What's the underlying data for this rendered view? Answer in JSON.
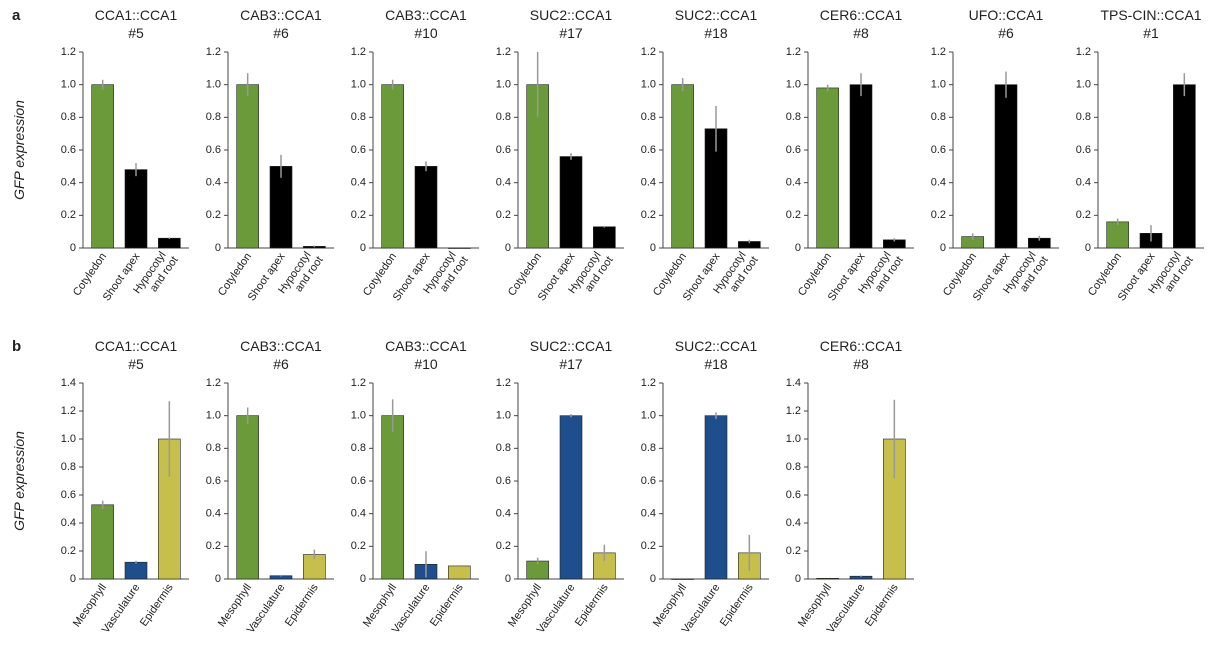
{
  "chart_data": [
    {
      "type": "bar",
      "panel": "a",
      "ylabel": "GFP expression",
      "title": "CCA1::CCA1",
      "subtitle": "#5",
      "categories": [
        "Cotyledon",
        "Shoot apex",
        "Hypocotyl and root"
      ],
      "values": [
        1.0,
        0.48,
        0.06
      ],
      "errors": [
        0.03,
        0.04,
        0.005
      ],
      "colors": [
        "#6b9a3b",
        "#000000",
        "#000000"
      ],
      "ylim": [
        0,
        1.2
      ],
      "yticks": [
        0,
        0.2,
        0.4,
        0.6,
        0.8,
        {
          "value": 1,
          "label": "1.0"
        },
        1.2
      ]
    },
    {
      "type": "bar",
      "title": "CAB3::CCA1",
      "subtitle": "#6",
      "categories": [
        "Cotyledon",
        "Shoot apex",
        "Hypocotyl and root"
      ],
      "values": [
        1.0,
        0.5,
        0.01
      ],
      "errors": [
        0.07,
        0.07,
        0.005
      ],
      "colors": [
        "#6b9a3b",
        "#000000",
        "#000000"
      ],
      "ylim": [
        0,
        1.2
      ],
      "yticks": [
        0,
        0.2,
        0.4,
        0.6,
        0.8,
        {
          "value": 1,
          "label": "1.0"
        },
        1.2
      ]
    },
    {
      "type": "bar",
      "title": "CAB3::CCA1",
      "subtitle": "#10",
      "categories": [
        "Cotyledon",
        "Shoot apex",
        "Hypocotyl and root"
      ],
      "values": [
        1.0,
        0.5,
        0.0
      ],
      "errors": [
        0.03,
        0.03,
        0.0
      ],
      "colors": [
        "#6b9a3b",
        "#000000",
        "#000000"
      ],
      "ylim": [
        0,
        1.2
      ],
      "yticks": [
        0,
        0.2,
        0.4,
        0.6,
        0.8,
        {
          "value": 1,
          "label": "1.0"
        },
        1.2
      ]
    },
    {
      "type": "bar",
      "title": "SUC2::CCA1",
      "subtitle": "#17",
      "categories": [
        "Cotyledon",
        "Shoot apex",
        "Hypocotyl and root"
      ],
      "values": [
        1.0,
        0.56,
        0.13
      ],
      "errors": [
        0.2,
        0.02,
        0.005
      ],
      "colors": [
        "#6b9a3b",
        "#000000",
        "#000000"
      ],
      "ylim": [
        0,
        1.2
      ],
      "yticks": [
        0,
        0.2,
        0.4,
        0.6,
        0.8,
        {
          "value": 1,
          "label": "1.0"
        },
        1.2
      ]
    },
    {
      "type": "bar",
      "title": "SUC2::CCA1",
      "subtitle": "#18",
      "categories": [
        "Cotyledon",
        "Shoot apex",
        "Hypocotyl and root"
      ],
      "values": [
        1.0,
        0.73,
        0.04
      ],
      "errors": [
        0.04,
        0.14,
        0.01
      ],
      "colors": [
        "#6b9a3b",
        "#000000",
        "#000000"
      ],
      "ylim": [
        0,
        1.2
      ],
      "yticks": [
        0,
        0.2,
        0.4,
        0.6,
        0.8,
        {
          "value": 1,
          "label": "1.0"
        },
        1.2
      ]
    },
    {
      "type": "bar",
      "title": "CER6::CCA1",
      "subtitle": "#8",
      "categories": [
        "Cotyledon",
        "Shoot apex",
        "Hypocotyl and root"
      ],
      "values": [
        0.98,
        1.0,
        0.05
      ],
      "errors": [
        0.02,
        0.07,
        0.01
      ],
      "colors": [
        "#6b9a3b",
        "#000000",
        "#000000"
      ],
      "ylim": [
        0,
        1.2
      ],
      "yticks": [
        0,
        0.2,
        0.4,
        0.6,
        0.8,
        {
          "value": 1,
          "label": "1.0"
        },
        1.2
      ]
    },
    {
      "type": "bar",
      "title": "UFO::CCA1",
      "subtitle": "#6",
      "categories": [
        "Cotyledon",
        "Shoot apex",
        "Hypocotyl and root"
      ],
      "values": [
        0.07,
        1.0,
        0.06
      ],
      "errors": [
        0.02,
        0.08,
        0.015
      ],
      "colors": [
        "#6b9a3b",
        "#000000",
        "#000000"
      ],
      "ylim": [
        0,
        1.2
      ],
      "yticks": [
        0,
        0.2,
        0.4,
        0.6,
        0.8,
        {
          "value": 1,
          "label": "1.0"
        },
        1.2
      ]
    },
    {
      "type": "bar",
      "title": "TPS-CIN::CCA1",
      "subtitle": "#1",
      "categories": [
        "Cotyledon",
        "Shoot apex",
        "Hypocotyl and root"
      ],
      "values": [
        0.16,
        0.09,
        1.0
      ],
      "errors": [
        0.02,
        0.05,
        0.07
      ],
      "colors": [
        "#6b9a3b",
        "#000000",
        "#000000"
      ],
      "ylim": [
        0,
        1.2
      ],
      "yticks": [
        0,
        0.2,
        0.4,
        0.6,
        0.8,
        {
          "value": 1,
          "label": "1.0"
        },
        1.2
      ]
    },
    {
      "type": "bar",
      "panel": "b",
      "ylabel": "GFP expression",
      "title": "CCA1::CCA1",
      "subtitle": "#5",
      "categories": [
        "Mesophyll",
        "Vasculature",
        "Epidermis"
      ],
      "values": [
        0.53,
        0.12,
        1.0
      ],
      "errors": [
        0.03,
        0.01,
        0.27
      ],
      "colors": [
        "#6b9a3b",
        "#1f4e8c",
        "#c6bf4c"
      ],
      "ylim": [
        0,
        1.4
      ],
      "yticks": [
        0,
        0.2,
        0.4,
        0.6,
        0.8,
        {
          "value": 1,
          "label": "1.0"
        },
        1.2,
        1.4
      ]
    },
    {
      "type": "bar",
      "title": "CAB3::CCA1",
      "subtitle": "#6",
      "categories": [
        "Mesophyll",
        "Vasculature",
        "Epidermis"
      ],
      "values": [
        1.0,
        0.02,
        0.15
      ],
      "errors": [
        0.05,
        0.005,
        0.03
      ],
      "colors": [
        "#6b9a3b",
        "#1f4e8c",
        "#c6bf4c"
      ],
      "ylim": [
        0,
        1.2
      ],
      "yticks": [
        0,
        0.2,
        0.4,
        0.6,
        0.8,
        {
          "value": 1,
          "label": "1.0"
        },
        1.2
      ]
    },
    {
      "type": "bar",
      "title": "CAB3::CCA1",
      "subtitle": "#10",
      "categories": [
        "Mesophyll",
        "Vasculature",
        "Epidermis"
      ],
      "values": [
        1.0,
        0.09,
        0.08
      ],
      "errors": [
        0.1,
        0.08,
        0.005
      ],
      "colors": [
        "#6b9a3b",
        "#1f4e8c",
        "#c6bf4c"
      ],
      "ylim": [
        0,
        1.2
      ],
      "yticks": [
        0,
        0.2,
        0.4,
        0.6,
        0.8,
        {
          "value": 1,
          "label": "1.0"
        },
        1.2
      ]
    },
    {
      "type": "bar",
      "title": "SUC2::CCA1",
      "subtitle": "#17",
      "categories": [
        "Mesophyll",
        "Vasculature",
        "Epidermis"
      ],
      "values": [
        0.11,
        1.0,
        0.16
      ],
      "errors": [
        0.02,
        0.01,
        0.05
      ],
      "colors": [
        "#6b9a3b",
        "#1f4e8c",
        "#c6bf4c"
      ],
      "ylim": [
        0,
        1.2
      ],
      "yticks": [
        0,
        0.2,
        0.4,
        0.6,
        0.8,
        {
          "value": 1,
          "label": "1.0"
        },
        1.2
      ]
    },
    {
      "type": "bar",
      "title": "SUC2::CCA1",
      "subtitle": "#18",
      "categories": [
        "Mesophyll",
        "Vasculature",
        "Epidermis"
      ],
      "values": [
        0.0,
        1.0,
        0.16
      ],
      "errors": [
        0.0,
        0.02,
        0.11
      ],
      "colors": [
        "#6b9a3b",
        "#1f4e8c",
        "#c6bf4c"
      ],
      "ylim": [
        0,
        1.2
      ],
      "yticks": [
        0,
        0.2,
        0.4,
        0.6,
        0.8,
        {
          "value": 1,
          "label": "1.0"
        },
        1.2
      ]
    },
    {
      "type": "bar",
      "title": "CER6::CCA1",
      "subtitle": "#8",
      "categories": [
        "Mesophyll",
        "Vasculature",
        "Epidermis"
      ],
      "values": [
        0.005,
        0.02,
        1.0
      ],
      "errors": [
        0.0,
        0.005,
        0.28
      ],
      "colors": [
        "#6b9a3b",
        "#1f4e8c",
        "#c6bf4c"
      ],
      "ylim": [
        0,
        1.4
      ],
      "yticks": [
        0,
        0.2,
        0.4,
        0.6,
        0.8,
        {
          "value": 1,
          "label": "1.0"
        },
        1.2,
        1.4
      ]
    }
  ]
}
